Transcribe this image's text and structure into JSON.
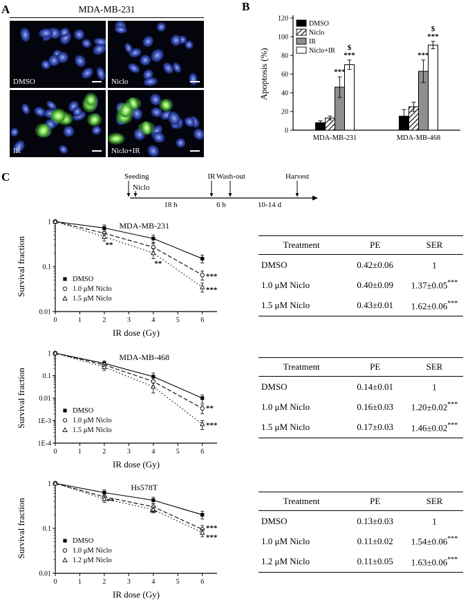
{
  "panels": {
    "a": {
      "label": "A",
      "title": "MDA-MB-231",
      "images": [
        {
          "label": "DMSO",
          "apoptotic": false
        },
        {
          "label": "Niclo",
          "apoptotic": false
        },
        {
          "label": "IR",
          "apoptotic": true
        },
        {
          "label": "Niclo+IR",
          "apoptotic": true
        }
      ]
    },
    "b": {
      "label": "B"
    },
    "c": {
      "label": "C",
      "timeline": {
        "events": [
          "Seeding",
          "IR",
          "Wash-out",
          "Harvest"
        ],
        "drug": "Niclo",
        "durations": [
          "18 h",
          "6 h",
          "10-14 d"
        ]
      }
    }
  },
  "chart_data": [
    {
      "id": "apoptosis-bar",
      "type": "bar",
      "ylabel": "Apoptosis (%)",
      "ylim": [
        0,
        120
      ],
      "yticks": [
        0,
        20,
        40,
        60,
        80,
        100,
        120
      ],
      "categories": [
        "MDA-MB-231",
        "MDA-MB-468"
      ],
      "legend_position": "top-left",
      "series": [
        {
          "name": "DMSO",
          "style": "black",
          "values": [
            8,
            15
          ],
          "errors": [
            2,
            7
          ]
        },
        {
          "name": "Niclo",
          "style": "hatch",
          "values": [
            13,
            25
          ],
          "errors": [
            2,
            5
          ]
        },
        {
          "name": "IR",
          "style": "gray",
          "values": [
            46,
            63
          ],
          "errors": [
            11,
            12
          ],
          "stars": [
            "***",
            "***"
          ]
        },
        {
          "name": "Niclo+IR",
          "style": "white",
          "values": [
            70,
            91
          ],
          "errors": [
            5,
            4
          ],
          "stars": [
            "***",
            "***"
          ],
          "dollar": [
            "$",
            "$"
          ]
        }
      ]
    },
    {
      "id": "clonogenic-mda-mb-231",
      "type": "line",
      "title": "MDA-MB-231",
      "xlabel": "IR dose (Gy)",
      "ylabel": "Survival fraction",
      "x": [
        0,
        2,
        4,
        6
      ],
      "xticks": [
        0,
        1,
        2,
        3,
        4,
        5,
        6
      ],
      "yscale": "log",
      "decades": 2,
      "ytick_labels": [
        "1",
        "0.1",
        "0.01"
      ],
      "series": [
        {
          "name": "DMSO",
          "marker": "square",
          "line": "solid",
          "values": [
            1,
            0.72,
            0.42,
            0.15
          ],
          "errors": [
            0,
            0.12,
            0.08,
            0.03
          ]
        },
        {
          "name": "1.0 μM Niclo",
          "marker": "circle",
          "line": "dashed",
          "values": [
            1,
            0.55,
            0.27,
            0.065
          ],
          "errors": [
            0,
            0.1,
            0.06,
            0.015
          ]
        },
        {
          "name": "1.5 μM Niclo",
          "marker": "triangle",
          "line": "dotted",
          "values": [
            1,
            0.46,
            0.2,
            0.035
          ],
          "errors": [
            0,
            0.09,
            0.05,
            0.008
          ]
        }
      ],
      "annotations": [
        {
          "x": 2.2,
          "y": 0.3,
          "text": "**"
        },
        {
          "x": 4.2,
          "y": 0.115,
          "text": "**"
        },
        {
          "x": 6.15,
          "y": 0.06,
          "text": "***"
        },
        {
          "x": 6.15,
          "y": 0.03,
          "text": "***"
        }
      ]
    },
    {
      "id": "clonogenic-mda-mb-468",
      "type": "line",
      "title": "MDA-MB-468",
      "xlabel": "IR dose (Gy)",
      "ylabel": "Survival fraction",
      "x": [
        0,
        2,
        4,
        6
      ],
      "xticks": [
        0,
        1,
        2,
        3,
        4,
        5,
        6
      ],
      "yscale": "log",
      "decades": 4,
      "ytick_labels": [
        "1",
        "0.1",
        "0.01",
        "1E-3",
        "1E-4"
      ],
      "series": [
        {
          "name": "DMSO",
          "marker": "square",
          "line": "solid",
          "values": [
            1,
            0.35,
            0.09,
            0.01
          ],
          "errors": [
            0,
            0.1,
            0.04,
            0.004
          ]
        },
        {
          "name": "1.0 μM Niclo",
          "marker": "circle",
          "line": "dashed",
          "values": [
            1,
            0.3,
            0.055,
            0.0035
          ],
          "errors": [
            0,
            0.08,
            0.025,
            0.0015
          ]
        },
        {
          "name": "1.5 μM Niclo",
          "marker": "triangle",
          "line": "dotted",
          "values": [
            1,
            0.24,
            0.032,
            0.0007
          ],
          "errors": [
            0,
            0.07,
            0.015,
            0.0003
          ]
        }
      ],
      "annotations": [
        {
          "x": 6.15,
          "y": 0.0035,
          "text": "**"
        },
        {
          "x": 6.15,
          "y": 0.0006,
          "text": "***"
        }
      ]
    },
    {
      "id": "clonogenic-hs578t",
      "type": "line",
      "title": "Hs578T",
      "xlabel": "IR dose (Gy)",
      "ylabel": "Survival fraction",
      "x": [
        0,
        2,
        4,
        6
      ],
      "xticks": [
        0,
        1,
        2,
        3,
        4,
        5,
        6
      ],
      "yscale": "log",
      "decades": 2,
      "ytick_labels": [
        "1",
        "0.1",
        "0.01"
      ],
      "series": [
        {
          "name": "DMSO",
          "marker": "square",
          "line": "solid",
          "values": [
            1,
            0.62,
            0.42,
            0.2
          ],
          "errors": [
            0,
            0.09,
            0.07,
            0.04
          ]
        },
        {
          "name": "1.0 μM Niclo",
          "marker": "circle",
          "line": "dashed",
          "values": [
            1,
            0.5,
            0.3,
            0.095
          ],
          "errors": [
            0,
            0.08,
            0.05,
            0.02
          ]
        },
        {
          "name": "1.2 μM Niclo",
          "marker": "triangle",
          "line": "dotted",
          "values": [
            1,
            0.45,
            0.26,
            0.08
          ],
          "errors": [
            0,
            0.07,
            0.04,
            0.015
          ]
        }
      ],
      "annotations": [
        {
          "x": 2.25,
          "y": 0.4,
          "text": "**"
        },
        {
          "x": 4.0,
          "y": 0.22,
          "text": "**"
        },
        {
          "x": 6.15,
          "y": 0.1,
          "text": "***"
        },
        {
          "x": 6.15,
          "y": 0.062,
          "text": "***"
        }
      ]
    }
  ],
  "tables": [
    {
      "columns": [
        "Treatment",
        "PE",
        "SER"
      ],
      "rows": [
        {
          "treatment": "DMSO",
          "pe": "0.42±0.06",
          "ser": "1",
          "stars": ""
        },
        {
          "treatment": "1.0 μM Niclo",
          "pe": "0.40±0.09",
          "ser": "1.37±0.05",
          "stars": "***"
        },
        {
          "treatment": "1.5 μM Niclo",
          "pe": "0.43±0.01",
          "ser": "1.62±0.06",
          "stars": "***"
        }
      ]
    },
    {
      "columns": [
        "Treatment",
        "PE",
        "SER"
      ],
      "rows": [
        {
          "treatment": "DMSO",
          "pe": "0.14±0.01",
          "ser": "1",
          "stars": ""
        },
        {
          "treatment": "1.0 μM Niclo",
          "pe": "0.16±0.03",
          "ser": "1.20±0.02",
          "stars": "***"
        },
        {
          "treatment": "1.5 μM Niclo",
          "pe": "0.17±0.03",
          "ser": "1.46±0.02",
          "stars": "***"
        }
      ]
    },
    {
      "columns": [
        "Treatment",
        "PE",
        "SER"
      ],
      "rows": [
        {
          "treatment": "DMSO",
          "pe": "0.13±0.03",
          "ser": "1",
          "stars": ""
        },
        {
          "treatment": "1.0 μM Niclo",
          "pe": "0.11±0.02",
          "ser": "1.54±0.06",
          "stars": "***"
        },
        {
          "treatment": "1.2 μM Niclo",
          "pe": "0.11±0.05",
          "ser": "1.63±0.06",
          "stars": "***"
        }
      ]
    }
  ]
}
